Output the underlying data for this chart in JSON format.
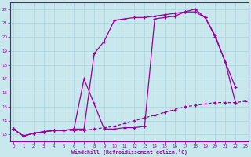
{
  "xlabel": "Windchill (Refroidissement éolien,°C)",
  "bg_color": "#c8e8ee",
  "grid_color": "#b0d8e0",
  "line_color": "#990099",
  "xlim": [
    -0.3,
    23.3
  ],
  "ylim": [
    12.5,
    22.5
  ],
  "xticks": [
    0,
    1,
    2,
    3,
    4,
    5,
    6,
    7,
    8,
    9,
    10,
    11,
    12,
    13,
    14,
    15,
    16,
    17,
    18,
    19,
    20,
    21,
    22,
    23
  ],
  "yticks": [
    13,
    14,
    15,
    16,
    17,
    18,
    19,
    20,
    21,
    22
  ],
  "curve_dashed_x": [
    0,
    1,
    2,
    3,
    4,
    5,
    6,
    7,
    8,
    9,
    10,
    11,
    12,
    13,
    14,
    15,
    16,
    17,
    18,
    19,
    20,
    21,
    22,
    23
  ],
  "curve_dashed_y": [
    13.4,
    12.9,
    13.1,
    13.2,
    13.3,
    13.3,
    13.3,
    13.3,
    13.4,
    13.5,
    13.6,
    13.8,
    14.0,
    14.2,
    14.4,
    14.6,
    14.8,
    15.0,
    15.1,
    15.2,
    15.3,
    15.3,
    15.3,
    15.4
  ],
  "curve2_x": [
    0,
    1,
    2,
    3,
    4,
    5,
    6,
    7,
    8,
    9,
    10,
    11,
    12,
    13,
    14,
    15,
    16,
    17,
    18,
    19,
    20,
    21,
    22
  ],
  "curve2_y": [
    13.4,
    12.9,
    13.1,
    13.2,
    13.3,
    13.3,
    13.4,
    13.4,
    18.8,
    19.7,
    21.2,
    21.3,
    21.4,
    21.4,
    21.5,
    21.6,
    21.7,
    21.8,
    21.8,
    21.4,
    20.0,
    18.2,
    16.4
  ],
  "curve3_x": [
    0,
    1,
    2,
    3,
    4,
    5,
    6,
    7,
    8,
    9,
    10,
    11,
    12,
    13,
    14,
    15,
    16,
    17,
    18,
    19,
    20,
    21,
    22
  ],
  "curve3_y": [
    13.4,
    12.9,
    13.1,
    13.2,
    13.3,
    13.3,
    13.4,
    17.0,
    15.2,
    13.4,
    13.4,
    13.5,
    13.5,
    13.6,
    21.3,
    21.4,
    21.5,
    21.8,
    22.0,
    21.4,
    20.1,
    18.2,
    15.3
  ]
}
